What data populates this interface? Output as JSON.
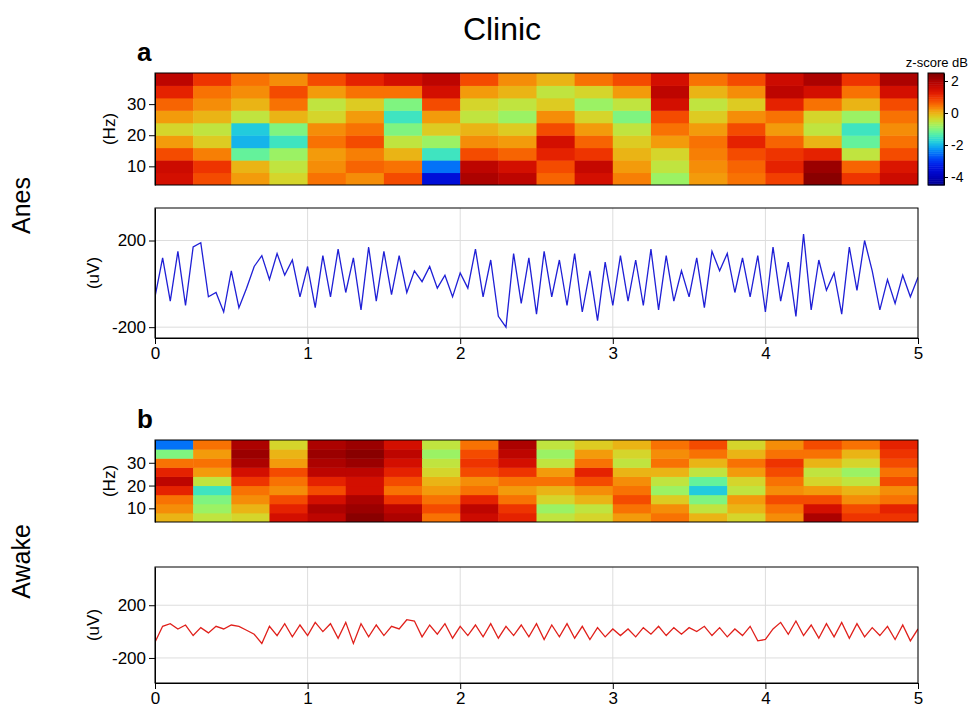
{
  "title": "Clinic",
  "chart_data": [
    {
      "type": "heatmap",
      "panel": "a",
      "row_label": "Anes",
      "y_label": "(Hz)",
      "x": [
        0.125,
        0.375,
        0.625,
        0.875,
        1.125,
        1.375,
        1.625,
        1.875,
        2.125,
        2.375,
        2.625,
        2.875,
        3.125,
        3.375,
        3.625,
        3.875,
        4.125,
        4.375,
        4.625,
        4.875
      ],
      "y": [
        6,
        10,
        14,
        18,
        22,
        26,
        30,
        34,
        38
      ],
      "z": [
        [
          1.5,
          0.8,
          0.2,
          -0.3,
          0.5,
          0.3,
          0.8,
          -3.5,
          2.0,
          1.8,
          0.6,
          1.5,
          0.4,
          -0.8,
          0.2,
          0.5,
          0.9,
          2.4,
          1.0,
          1.6
        ],
        [
          1.6,
          1.0,
          0.0,
          -0.5,
          0.3,
          0.6,
          0.5,
          -2.5,
          1.8,
          1.5,
          0.8,
          1.7,
          0.2,
          -0.5,
          0.3,
          0.6,
          1.2,
          2.2,
          0.6,
          1.4
        ],
        [
          0.8,
          0.4,
          -1.2,
          -0.8,
          0.2,
          0.4,
          0.0,
          -1.5,
          0.8,
          0.6,
          1.2,
          1.0,
          0.0,
          -0.3,
          0.4,
          0.8,
          1.0,
          1.2,
          -0.5,
          0.8
        ],
        [
          0.2,
          -0.2,
          -2.0,
          -1.5,
          0.5,
          0.8,
          -0.5,
          -0.8,
          0.3,
          0.2,
          1.5,
          0.6,
          -0.2,
          0.2,
          0.5,
          1.2,
          0.6,
          0.0,
          -1.2,
          0.5
        ],
        [
          -0.3,
          -0.5,
          -1.8,
          -1.0,
          0.3,
          0.5,
          -1.0,
          -0.2,
          0.0,
          -0.2,
          0.8,
          0.2,
          -0.5,
          0.5,
          0.2,
          0.8,
          0.2,
          -0.5,
          -1.5,
          0.3
        ],
        [
          0.2,
          0.0,
          -0.5,
          0.0,
          -0.3,
          0.2,
          -1.5,
          0.2,
          -0.5,
          -0.8,
          0.3,
          -0.3,
          -1.0,
          0.8,
          -0.2,
          0.3,
          0.5,
          -0.3,
          -0.8,
          0.5
        ],
        [
          0.6,
          0.3,
          0.0,
          0.5,
          -0.5,
          -0.2,
          -1.0,
          0.8,
          -0.3,
          -0.5,
          -0.2,
          -0.8,
          -0.5,
          1.5,
          -0.5,
          -0.2,
          1.2,
          0.5,
          0.0,
          0.8
        ],
        [
          1.2,
          0.5,
          0.3,
          0.8,
          0.2,
          0.5,
          0.5,
          1.5,
          0.2,
          0.0,
          -0.5,
          -0.3,
          0.2,
          1.8,
          0.0,
          0.3,
          1.8,
          1.5,
          0.5,
          1.5
        ],
        [
          1.8,
          1.0,
          0.5,
          0.3,
          0.8,
          1.2,
          1.5,
          1.8,
          0.8,
          0.3,
          0.0,
          0.5,
          0.8,
          1.5,
          0.5,
          0.8,
          1.6,
          2.0,
          1.0,
          2.0
        ]
      ],
      "xlim": [
        0,
        5
      ],
      "ylim": [
        4,
        40
      ],
      "yticks": [
        10,
        20,
        30
      ],
      "tick_labels": "y",
      "colorbar": {
        "title": "z-score dB",
        "range": [
          -4.5,
          2.5
        ],
        "ticks": [
          2,
          0,
          -2,
          -4
        ]
      }
    },
    {
      "type": "line",
      "y_label": "(uV)",
      "x": [
        0,
        0.05,
        0.1,
        0.15,
        0.2,
        0.25,
        0.3,
        0.35,
        0.4,
        0.45,
        0.5,
        0.55,
        0.6,
        0.65,
        0.7,
        0.75,
        0.8,
        0.85,
        0.9,
        0.95,
        1,
        1.05,
        1.1,
        1.15,
        1.2,
        1.25,
        1.3,
        1.35,
        1.4,
        1.45,
        1.5,
        1.55,
        1.6,
        1.65,
        1.7,
        1.75,
        1.8,
        1.85,
        1.9,
        1.95,
        2,
        2.05,
        2.1,
        2.15,
        2.2,
        2.25,
        2.3,
        2.35,
        2.4,
        2.45,
        2.5,
        2.55,
        2.6,
        2.65,
        2.7,
        2.75,
        2.8,
        2.85,
        2.9,
        2.95,
        3,
        3.05,
        3.1,
        3.15,
        3.2,
        3.25,
        3.3,
        3.35,
        3.4,
        3.45,
        3.5,
        3.55,
        3.6,
        3.65,
        3.7,
        3.75,
        3.8,
        3.85,
        3.9,
        3.95,
        4,
        4.05,
        4.1,
        4.15,
        4.2,
        4.25,
        4.3,
        4.35,
        4.4,
        4.45,
        4.5,
        4.55,
        4.6,
        4.65,
        4.7,
        4.75,
        4.8,
        4.85,
        4.9,
        4.95,
        5
      ],
      "series": [
        {
          "color": "#1f1fd6",
          "values": [
            -60,
            120,
            -80,
            150,
            -100,
            170,
            190,
            -60,
            -40,
            -130,
            60,
            -110,
            -20,
            80,
            130,
            20,
            140,
            40,
            110,
            -60,
            80,
            -110,
            130,
            -60,
            160,
            -40,
            120,
            -120,
            170,
            -80,
            150,
            -50,
            130,
            -40,
            60,
            10,
            80,
            -20,
            40,
            -60,
            50,
            -20,
            160,
            -60,
            110,
            -150,
            -200,
            140,
            -90,
            120,
            -140,
            150,
            -60,
            110,
            -100,
            140,
            -130,
            60,
            -170,
            100,
            -100,
            130,
            -80,
            110,
            -100,
            160,
            -120,
            130,
            -80,
            60,
            -60,
            120,
            -110,
            150,
            60,
            140,
            -40,
            120,
            -60,
            130,
            -130,
            170,
            -80,
            100,
            -150,
            230,
            -120,
            110,
            -30,
            50,
            -140,
            170,
            -30,
            200,
            60,
            -120,
            20,
            -90,
            40,
            -60,
            30
          ]
        }
      ],
      "xlim": [
        0,
        5
      ],
      "ylim": [
        -250,
        350
      ],
      "xticks": [
        0,
        1,
        2,
        3,
        4,
        5
      ],
      "yticks": [
        -200,
        200
      ],
      "grid": true
    },
    {
      "type": "heatmap",
      "panel": "b",
      "row_label": "Awake",
      "y_label": "(Hz)",
      "x": [
        0.125,
        0.375,
        0.625,
        0.875,
        1.125,
        1.375,
        1.625,
        1.875,
        2.125,
        2.375,
        2.625,
        2.875,
        3.125,
        3.375,
        3.625,
        3.875,
        4.125,
        4.375,
        4.625,
        4.875
      ],
      "y": [
        6,
        10,
        14,
        18,
        22,
        26,
        30,
        34,
        38
      ],
      "z": [
        [
          0.0,
          -0.5,
          -0.3,
          1.5,
          1.8,
          2.4,
          2.0,
          0.5,
          1.6,
          1.2,
          -0.5,
          -0.3,
          0.2,
          0.5,
          0.0,
          -0.3,
          0.3,
          2.0,
          1.0,
          1.0
        ],
        [
          0.3,
          -0.8,
          0.0,
          1.2,
          2.0,
          2.2,
          1.8,
          0.8,
          1.8,
          1.0,
          -0.8,
          -0.5,
          0.5,
          0.3,
          -0.5,
          0.0,
          0.5,
          1.5,
          0.8,
          1.2
        ],
        [
          0.5,
          -1.0,
          0.3,
          0.8,
          1.5,
          2.0,
          1.0,
          0.5,
          1.2,
          0.5,
          -0.3,
          0.0,
          0.8,
          -0.2,
          -1.0,
          0.2,
          0.8,
          0.8,
          0.3,
          0.5
        ],
        [
          1.2,
          -1.5,
          0.5,
          0.3,
          0.8,
          1.5,
          0.5,
          0.2,
          0.5,
          0.2,
          0.0,
          0.3,
          0.5,
          -0.8,
          -1.8,
          -0.5,
          0.3,
          0.2,
          0.0,
          0.3
        ],
        [
          1.8,
          -0.5,
          1.0,
          0.5,
          1.2,
          1.5,
          0.8,
          0.0,
          0.3,
          0.5,
          0.5,
          0.8,
          0.3,
          -0.5,
          -1.2,
          -0.3,
          0.5,
          -0.3,
          -0.5,
          0.8
        ],
        [
          1.2,
          0.2,
          1.5,
          0.8,
          1.8,
          1.8,
          1.2,
          -0.3,
          0.8,
          1.0,
          0.2,
          1.2,
          0.0,
          0.0,
          -0.5,
          0.2,
          0.8,
          -0.5,
          -0.8,
          0.5
        ],
        [
          0.5,
          0.5,
          2.0,
          0.2,
          2.0,
          2.2,
          1.5,
          -0.5,
          1.0,
          1.5,
          -0.5,
          0.5,
          -0.5,
          0.5,
          0.0,
          0.5,
          1.0,
          0.0,
          -0.3,
          0.8
        ],
        [
          -1.0,
          0.2,
          2.2,
          0.0,
          2.2,
          2.4,
          1.8,
          -0.8,
          0.8,
          1.8,
          -0.8,
          0.2,
          -0.3,
          0.3,
          0.5,
          0.0,
          0.5,
          0.5,
          0.0,
          1.0
        ],
        [
          -2.5,
          0.5,
          2.0,
          -0.3,
          2.0,
          2.2,
          1.5,
          -0.5,
          0.5,
          2.0,
          -0.5,
          -0.2,
          0.0,
          0.5,
          0.8,
          -0.3,
          0.3,
          0.8,
          0.5,
          1.2
        ]
      ],
      "xlim": [
        0,
        5
      ],
      "ylim": [
        4,
        40
      ],
      "yticks": [
        10,
        20,
        30
      ],
      "tick_labels": "y"
    },
    {
      "type": "line",
      "y_label": "(uV)",
      "x": [
        0,
        0.05,
        0.1,
        0.15,
        0.2,
        0.25,
        0.3,
        0.35,
        0.4,
        0.45,
        0.5,
        0.55,
        0.6,
        0.65,
        0.7,
        0.75,
        0.8,
        0.85,
        0.9,
        0.95,
        1,
        1.05,
        1.1,
        1.15,
        1.2,
        1.25,
        1.3,
        1.35,
        1.4,
        1.45,
        1.5,
        1.55,
        1.6,
        1.65,
        1.7,
        1.75,
        1.8,
        1.85,
        1.9,
        1.95,
        2,
        2.05,
        2.1,
        2.15,
        2.2,
        2.25,
        2.3,
        2.35,
        2.4,
        2.45,
        2.5,
        2.55,
        2.6,
        2.65,
        2.7,
        2.75,
        2.8,
        2.85,
        2.9,
        2.95,
        3,
        3.05,
        3.1,
        3.15,
        3.2,
        3.25,
        3.3,
        3.35,
        3.4,
        3.45,
        3.5,
        3.55,
        3.6,
        3.65,
        3.7,
        3.75,
        3.8,
        3.85,
        3.9,
        3.95,
        4,
        4.05,
        4.1,
        4.15,
        4.2,
        4.25,
        4.3,
        4.35,
        4.4,
        4.45,
        4.5,
        4.55,
        4.6,
        4.65,
        4.7,
        4.75,
        4.8,
        4.85,
        4.9,
        4.95,
        5
      ],
      "series": [
        {
          "color": "#e0201b",
          "values": [
            -80,
            40,
            60,
            20,
            50,
            -30,
            30,
            -10,
            40,
            20,
            50,
            40,
            10,
            -20,
            -90,
            40,
            -30,
            60,
            -40,
            50,
            -30,
            70,
            0,
            60,
            -50,
            70,
            -90,
            60,
            -40,
            50,
            -30,
            40,
            20,
            90,
            80,
            -40,
            50,
            -20,
            60,
            -50,
            40,
            -30,
            50,
            -40,
            60,
            -50,
            40,
            -30,
            50,
            -40,
            60,
            -60,
            50,
            -40,
            60,
            -50,
            40,
            -60,
            30,
            -40,
            20,
            -30,
            20,
            -40,
            30,
            -20,
            40,
            -30,
            30,
            -20,
            30,
            0,
            40,
            -30,
            30,
            -40,
            20,
            -30,
            40,
            -70,
            -60,
            20,
            70,
            -20,
            80,
            -30,
            50,
            -50,
            60,
            -40,
            70,
            -50,
            60,
            -40,
            30,
            -30,
            40,
            -60,
            50,
            -70,
            20
          ]
        }
      ],
      "xlim": [
        0,
        5
      ],
      "ylim": [
        -390,
        490
      ],
      "xticks": [
        0,
        1,
        2,
        3,
        4,
        5
      ],
      "yticks": [
        -200,
        200
      ],
      "grid": true
    }
  ]
}
